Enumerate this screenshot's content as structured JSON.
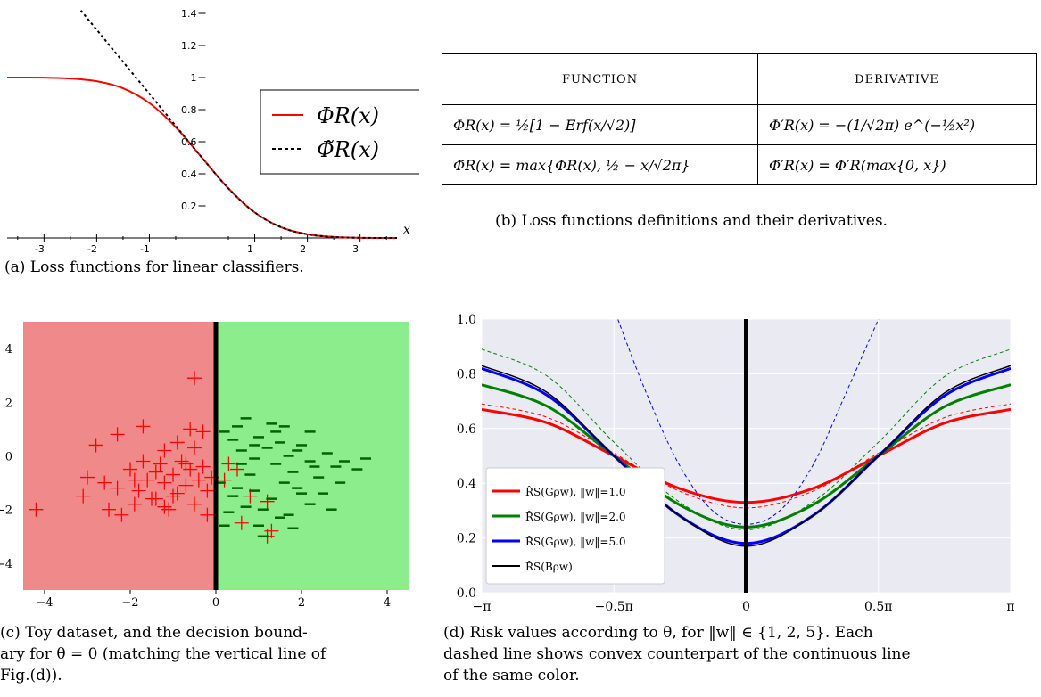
{
  "panel_a": {
    "caption": "(a) Loss functions for linear classifiers.",
    "xlabel": "x",
    "legend": [
      "ΦR(x)",
      "Φ̃R(x)"
    ],
    "colors": {
      "solid": "#ff0000",
      "dashed": "#000000"
    },
    "chart_data": {
      "type": "line",
      "xlim": [
        -3.7,
        3.7
      ],
      "ylim": [
        0,
        1.4
      ],
      "x_ticks": [
        "-3",
        "-2",
        "-1",
        "1",
        "2",
        "3"
      ],
      "y_ticks": [
        "0.2",
        "0.4",
        "0.6",
        "0.8",
        "1",
        "1.2",
        "1.4"
      ],
      "series": [
        {
          "name": "ΦR(x)",
          "style": "solid",
          "color": "#ff0000",
          "x": [
            -3.7,
            -3,
            -2.5,
            -2,
            -1.5,
            -1,
            -0.5,
            0,
            0.5,
            1,
            1.5,
            2,
            2.5,
            3,
            3.7
          ],
          "y": [
            1.0,
            0.999,
            0.994,
            0.977,
            0.933,
            0.841,
            0.691,
            0.5,
            0.309,
            0.159,
            0.067,
            0.023,
            0.006,
            0.001,
            0.0
          ]
        },
        {
          "name": "Φ̃R(x)",
          "style": "dashed",
          "color": "#000000",
          "x": [
            -2.3,
            -2,
            -1.5,
            -1,
            -0.5,
            0,
            0.5,
            1,
            1.5,
            2,
            2.5,
            3,
            3.7
          ],
          "y": [
            1.418,
            1.298,
            1.098,
            0.899,
            0.699,
            0.5,
            0.309,
            0.159,
            0.067,
            0.023,
            0.006,
            0.001,
            0.0
          ]
        }
      ]
    }
  },
  "panel_b": {
    "caption": "(b) Loss functions definitions and their derivatives.",
    "headers": [
      "FUNCTION",
      "DERIVATIVE"
    ],
    "rows": [
      [
        "ΦR(x) = ½[1 − Erf(x/√2)]",
        "Φ′R(x) = −(1/√2π) e^(−½x²)"
      ],
      [
        "Φ̃R(x) = max{ΦR(x), ½ − x/√2π}",
        "Φ̃′R(x) = Φ′R(max{0, x})"
      ]
    ]
  },
  "panel_c": {
    "caption_lines": [
      "(c) Toy dataset, and the decision bound-",
      "ary for θ = 0 (matching the vertical line of",
      "Fig.(d))."
    ],
    "colors": {
      "left_region": "#f08a8a",
      "right_region": "#8ced8c",
      "plus": "#ff0000",
      "minus": "#006400",
      "boundary": "#000000"
    },
    "chart_data": {
      "type": "scatter",
      "xlim": [
        -4.5,
        4.5
      ],
      "ylim": [
        -5,
        5
      ],
      "x_ticks": [
        "−4",
        "−2",
        "0",
        "2",
        "4"
      ],
      "y_ticks": [
        "4",
        "2",
        "0",
        "−2",
        "−4"
      ],
      "boundary_x": 0,
      "series": [
        {
          "marker": "+",
          "color": "#ff0000",
          "points": [
            [
              -4.2,
              -2.0
            ],
            [
              -3.0,
              -0.8
            ],
            [
              -3.1,
              -1.5
            ],
            [
              -2.6,
              -1.0
            ],
            [
              -2.5,
              -2.0
            ],
            [
              -2.3,
              -1.2
            ],
            [
              -2.2,
              -2.2
            ],
            [
              -2.0,
              -0.5
            ],
            [
              -1.9,
              -1.8
            ],
            [
              -1.8,
              -1.3
            ],
            [
              -1.7,
              -0.2
            ],
            [
              -1.6,
              -0.9
            ],
            [
              -1.5,
              -1.6
            ],
            [
              -1.4,
              -0.6
            ],
            [
              -1.3,
              -0.3
            ],
            [
              -1.2,
              -1.0
            ],
            [
              -1.1,
              -2.0
            ],
            [
              -1.0,
              -0.7
            ],
            [
              -0.9,
              -1.4
            ],
            [
              -0.8,
              -0.2
            ],
            [
              -0.7,
              -1.1
            ],
            [
              -0.6,
              -0.5
            ],
            [
              -0.5,
              -1.8
            ],
            [
              -0.4,
              -0.9
            ],
            [
              -0.3,
              -0.4
            ],
            [
              -0.2,
              -1.3
            ],
            [
              -0.1,
              -0.8
            ],
            [
              -2.8,
              0.4
            ],
            [
              -2.3,
              0.8
            ],
            [
              -1.7,
              1.1
            ],
            [
              -1.2,
              0.2
            ],
            [
              -0.9,
              0.5
            ],
            [
              -0.6,
              1.0
            ],
            [
              -0.5,
              0.3
            ],
            [
              -0.3,
              0.9
            ],
            [
              -0.5,
              2.9
            ],
            [
              0.3,
              -0.3
            ],
            [
              0.2,
              -0.9
            ],
            [
              0.5,
              -0.5
            ],
            [
              0.8,
              -1.5
            ],
            [
              1.2,
              -3.0
            ],
            [
              1.3,
              -2.8
            ],
            [
              0.6,
              -2.5
            ],
            [
              1.2,
              -1.7
            ],
            [
              -0.2,
              -2.2
            ],
            [
              -1.4,
              -1.6
            ],
            [
              -1.2,
              -1.9
            ],
            [
              -1.9,
              -0.9
            ],
            [
              -0.7,
              -0.3
            ],
            [
              -1.0,
              -1.5
            ]
          ]
        },
        {
          "marker": "−",
          "color": "#006400",
          "points": [
            [
              0.2,
              0.9
            ],
            [
              0.4,
              0.6
            ],
            [
              0.6,
              0.2
            ],
            [
              0.9,
              -0.1
            ],
            [
              1.0,
              0.7
            ],
            [
              1.2,
              0.3
            ],
            [
              1.4,
              -0.3
            ],
            [
              1.5,
              0.5
            ],
            [
              1.7,
              0.0
            ],
            [
              1.8,
              -0.6
            ],
            [
              2.0,
              0.4
            ],
            [
              2.2,
              -0.2
            ],
            [
              2.4,
              -0.8
            ],
            [
              2.6,
              0.1
            ],
            [
              2.8,
              -0.4
            ],
            [
              3.0,
              -0.2
            ],
            [
              2.5,
              -1.4
            ],
            [
              2.2,
              -1.8
            ],
            [
              1.9,
              -1.2
            ],
            [
              1.6,
              -1.0
            ],
            [
              1.3,
              -1.6
            ],
            [
              1.1,
              -2.0
            ],
            [
              0.9,
              -1.3
            ],
            [
              0.7,
              -1.9
            ],
            [
              0.5,
              -1.2
            ],
            [
              0.3,
              -2.1
            ],
            [
              0.4,
              -1.5
            ],
            [
              0.8,
              -0.7
            ],
            [
              1.0,
              -2.6
            ],
            [
              1.5,
              -2.3
            ],
            [
              1.3,
              1.2
            ],
            [
              0.7,
              1.4
            ],
            [
              1.6,
              1.1
            ],
            [
              2.2,
              0.9
            ],
            [
              2.9,
              -1.0
            ],
            [
              3.3,
              -0.5
            ],
            [
              3.5,
              -0.1
            ],
            [
              2.7,
              -2.0
            ],
            [
              1.8,
              -2.7
            ],
            [
              1.1,
              -3.0
            ],
            [
              0.2,
              -2.6
            ],
            [
              0.6,
              -0.3
            ],
            [
              1.4,
              0.9
            ],
            [
              2.0,
              -1.4
            ],
            [
              0.5,
              1.1
            ],
            [
              1.9,
              0.2
            ],
            [
              2.3,
              -0.4
            ],
            [
              0.1,
              -1.0
            ],
            [
              0.9,
              0.4
            ],
            [
              1.7,
              -2.2
            ]
          ]
        }
      ]
    }
  },
  "panel_d": {
    "caption_lines": [
      "(d) Risk values according to θ, for ‖w‖ ∈ {1, 2, 5}.  Each",
      "dashed line shows convex counterpart of the continuous line",
      "of the same color."
    ],
    "colors": {
      "bg": "#eaeaf2",
      "w1": "#ff0000",
      "w2": "#008000",
      "w5": "#0000ff",
      "bayes": "#000000"
    },
    "legend": [
      "R̂S(Gρw), ‖w‖=1.0",
      "R̂S(Gρw), ‖w‖=2.0",
      "R̂S(Gρw), ‖w‖=5.0",
      "R̂S(Bρw)"
    ],
    "chart_data": {
      "type": "line",
      "xlabel": "",
      "ylabel": "",
      "xlim": [
        -3.1416,
        3.1416
      ],
      "ylim": [
        0,
        1.0
      ],
      "x_ticks": [
        "−π",
        "−0.5π",
        "0",
        "0.5π",
        "π"
      ],
      "y_ticks": [
        "1.0",
        "0.8",
        "0.6",
        "0.4",
        "0.2",
        "0.0"
      ],
      "vertical_line_x": 0,
      "series": [
        {
          "name": "R̂S(Gρw), ‖w‖=1.0",
          "style": "solid",
          "color": "#ff0000",
          "x": [
            -3.1416,
            -2.3562,
            -1.5708,
            -0.7854,
            0,
            0.7854,
            1.5708,
            2.3562,
            3.1416
          ],
          "y": [
            0.67,
            0.62,
            0.5,
            0.38,
            0.33,
            0.38,
            0.5,
            0.62,
            0.67
          ]
        },
        {
          "name": "R̂S(Gρw), ‖w‖=2.0",
          "style": "solid",
          "color": "#008000",
          "x": [
            -3.1416,
            -2.3562,
            -1.5708,
            -0.7854,
            0,
            0.7854,
            1.5708,
            2.3562,
            3.1416
          ],
          "y": [
            0.76,
            0.68,
            0.5,
            0.32,
            0.24,
            0.32,
            0.5,
            0.68,
            0.76
          ]
        },
        {
          "name": "R̂S(Gρw), ‖w‖=5.0",
          "style": "solid",
          "color": "#0000ff",
          "x": [
            -3.1416,
            -2.3562,
            -1.5708,
            -0.7854,
            0,
            0.7854,
            1.5708,
            2.3562,
            3.1416
          ],
          "y": [
            0.82,
            0.72,
            0.5,
            0.28,
            0.18,
            0.28,
            0.5,
            0.72,
            0.82
          ]
        },
        {
          "name": "R̂S(Bρw)",
          "style": "solid",
          "color": "#000000",
          "x": [
            -3.1416,
            -2.3562,
            -1.5708,
            -0.7854,
            0,
            0.7854,
            1.5708,
            2.3562,
            3.1416
          ],
          "y": [
            0.83,
            0.73,
            0.5,
            0.28,
            0.17,
            0.28,
            0.5,
            0.73,
            0.83
          ]
        },
        {
          "name": "",
          "style": "dashed",
          "color": "#ff0000",
          "x": [
            -3.1416,
            -2.3562,
            -1.5708,
            -0.7854,
            0,
            0.7854,
            1.5708,
            2.3562,
            3.1416
          ],
          "y": [
            0.69,
            0.64,
            0.51,
            0.37,
            0.31,
            0.37,
            0.51,
            0.64,
            0.69
          ]
        },
        {
          "name": "",
          "style": "dashed",
          "color": "#008000",
          "x": [
            -3.1416,
            -2.3562,
            -1.5708,
            -0.7854,
            0,
            0.7854,
            1.5708,
            2.3562,
            3.1416
          ],
          "y": [
            0.89,
            0.79,
            0.55,
            0.33,
            0.23,
            0.33,
            0.55,
            0.79,
            0.89
          ]
        },
        {
          "name": "",
          "style": "dashed",
          "color": "#0000ff",
          "x": [
            -1.55,
            -1.2,
            -0.8,
            -0.4,
            0,
            0.4,
            0.8,
            1.2,
            1.6
          ],
          "y": [
            1.02,
            0.74,
            0.47,
            0.3,
            0.25,
            0.3,
            0.47,
            0.74,
            1.02
          ]
        }
      ]
    }
  }
}
